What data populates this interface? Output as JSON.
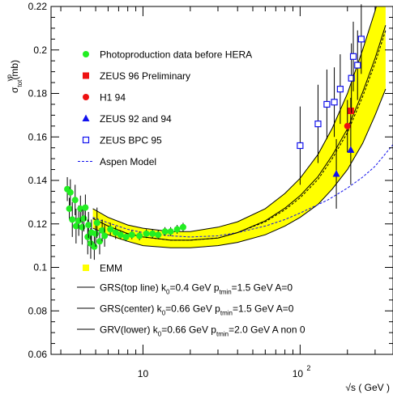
{
  "chart_data": {
    "type": "scatter",
    "ylabel_main": "σ",
    "ylabel_sup": "γp",
    "ylabel_sub": "tot",
    "ylabel_unit": "(mb)",
    "xlabel": "√s ( GeV )",
    "x_scale": "log",
    "xlim": [
      2.6,
      390
    ],
    "ylim": [
      0.06,
      0.22
    ],
    "yticks": [
      "0.06",
      "0.08",
      "0.1",
      "0.12",
      "0.14",
      "0.16",
      "0.18",
      "0.2",
      "0.22"
    ],
    "xtick_main": "10",
    "xtick_main_value": 10,
    "xtick_exp_base": "10",
    "xtick_exp": "2",
    "xtick_exp_value": 100,
    "legend": [
      {
        "label": "Photoproduction data before HERA",
        "marker": "circle",
        "color": "#22ee22"
      },
      {
        "label": "ZEUS 96 Preliminary",
        "marker": "square",
        "color": "#ee1111"
      },
      {
        "label": "H1 94",
        "marker": "circle",
        "color": "#ee1111"
      },
      {
        "label": "ZEUS 92 and 94",
        "marker": "triangle",
        "color": "#1111ee"
      },
      {
        "label": "ZEUS BPC 95",
        "marker": "open-square",
        "color": "#1111ee"
      },
      {
        "label": "Aspen Model",
        "marker": "dashed-line",
        "color": "#1111ee"
      }
    ],
    "legend2": {
      "emm": {
        "label": "EMM",
        "color": "#ffff00"
      },
      "lines": [
        {
          "pre": "GRS(top line) k",
          "s1": "0",
          "mid": "=0.4 GeV  p",
          "s2": "tmin",
          "post": "=1.5 GeV A=0"
        },
        {
          "pre": "GRS(center) k",
          "s1": "0",
          "mid": "=0.66 GeV  p",
          "s2": "tmin",
          "post": "=1.5 GeV A=0"
        },
        {
          "pre": "GRV(lower) k",
          "s1": "0",
          "mid": "=0.66 GeV p",
          "s2": "tmin",
          "post": "=2.0 GeV A non 0"
        }
      ]
    },
    "band": {
      "x": [
        4.8,
        5,
        6,
        7,
        8,
        10,
        12,
        15,
        20,
        30,
        40,
        60,
        80,
        100,
        130,
        160,
        200,
        250,
        300,
        350
      ],
      "upper": [
        0.127,
        0.126,
        0.123,
        0.121,
        0.1195,
        0.118,
        0.117,
        0.1165,
        0.1165,
        0.1185,
        0.121,
        0.127,
        0.134,
        0.141,
        0.152,
        0.164,
        0.18,
        0.2,
        0.218,
        0.236
      ],
      "lower": [
        0.118,
        0.1175,
        0.115,
        0.113,
        0.112,
        0.11,
        0.1095,
        0.109,
        0.109,
        0.11,
        0.1115,
        0.115,
        0.119,
        0.123,
        0.129,
        0.136,
        0.145,
        0.157,
        0.17,
        0.182
      ]
    },
    "lines": {
      "grs_top": {
        "x": [
          4.8,
          6,
          8,
          10,
          15,
          20,
          30,
          40,
          60,
          80,
          100,
          130,
          160,
          200,
          250,
          300,
          350
        ],
        "y": [
          0.127,
          0.123,
          0.1195,
          0.118,
          0.1165,
          0.1165,
          0.1185,
          0.121,
          0.127,
          0.134,
          0.141,
          0.152,
          0.164,
          0.18,
          0.2,
          0.218,
          0.236
        ]
      },
      "grs_center": {
        "x": [
          4.8,
          6,
          8,
          10,
          15,
          20,
          30,
          40,
          60,
          80,
          100,
          130,
          160,
          200,
          250,
          300,
          350
        ],
        "y": [
          0.1225,
          0.119,
          0.1155,
          0.114,
          0.1125,
          0.1125,
          0.1135,
          0.116,
          0.121,
          0.1265,
          0.132,
          0.1405,
          0.15,
          0.162,
          0.1785,
          0.194,
          0.209
        ]
      },
      "grv_lower": {
        "x": [
          4.8,
          6,
          8,
          10,
          15,
          20,
          30,
          40,
          60,
          80,
          100,
          130,
          160,
          200,
          250,
          300,
          350
        ],
        "y": [
          0.118,
          0.115,
          0.112,
          0.11,
          0.109,
          0.109,
          0.11,
          0.1115,
          0.115,
          0.119,
          0.123,
          0.129,
          0.136,
          0.145,
          0.157,
          0.17,
          0.182
        ]
      },
      "aspen": {
        "x": [
          4.8,
          6,
          8,
          10,
          15,
          20,
          30,
          40,
          60,
          80,
          100,
          150,
          200,
          250,
          300,
          390
        ],
        "y": [
          0.123,
          0.1205,
          0.1175,
          0.116,
          0.1145,
          0.114,
          0.1145,
          0.116,
          0.119,
          0.122,
          0.125,
          0.131,
          0.1365,
          0.1415,
          0.1465,
          0.1565
        ]
      }
    },
    "series": [
      {
        "name": "Photoproduction data before HERA",
        "marker": "circle",
        "color": "#22ee22",
        "points": [
          {
            "x": 3.3,
            "y": 0.136,
            "err": 0.0055
          },
          {
            "x": 3.45,
            "y": 0.1345,
            "err": 0.006
          },
          {
            "x": 3.4,
            "y": 0.127,
            "err": 0.005
          },
          {
            "x": 3.55,
            "y": 0.122,
            "err": 0.008
          },
          {
            "x": 3.7,
            "y": 0.131,
            "err": 0.007
          },
          {
            "x": 3.75,
            "y": 0.119,
            "err": 0.008
          },
          {
            "x": 3.9,
            "y": 0.1215,
            "err": 0.007
          },
          {
            "x": 4.0,
            "y": 0.127,
            "err": 0.006
          },
          {
            "x": 4.1,
            "y": 0.1185,
            "err": 0.008
          },
          {
            "x": 4.2,
            "y": 0.1225,
            "err": 0.006
          },
          {
            "x": 4.3,
            "y": 0.1275,
            "err": 0.006
          },
          {
            "x": 4.45,
            "y": 0.114,
            "err": 0.008
          },
          {
            "x": 4.5,
            "y": 0.1195,
            "err": 0.006
          },
          {
            "x": 4.65,
            "y": 0.111,
            "err": 0.007
          },
          {
            "x": 4.7,
            "y": 0.116,
            "err": 0.006
          },
          {
            "x": 4.9,
            "y": 0.1095,
            "err": 0.006
          },
          {
            "x": 5.0,
            "y": 0.1155,
            "err": 0.006
          },
          {
            "x": 5.1,
            "y": 0.1205,
            "err": 0.007
          },
          {
            "x": 5.3,
            "y": 0.112,
            "err": 0.006
          },
          {
            "x": 5.5,
            "y": 0.117,
            "err": 0.005
          },
          {
            "x": 5.7,
            "y": 0.1145,
            "err": 0.005
          },
          {
            "x": 6.2,
            "y": 0.1175,
            "err": 0.003
          },
          {
            "x": 6.7,
            "y": 0.116,
            "err": 0.003
          },
          {
            "x": 7.2,
            "y": 0.115,
            "err": 0.002
          },
          {
            "x": 7.8,
            "y": 0.114,
            "err": 0.002
          },
          {
            "x": 8.5,
            "y": 0.115,
            "err": 0.002
          },
          {
            "x": 9.5,
            "y": 0.1145,
            "err": 0.002
          },
          {
            "x": 10.5,
            "y": 0.1155,
            "err": 0.002
          },
          {
            "x": 11.5,
            "y": 0.1155,
            "err": 0.002
          },
          {
            "x": 12.5,
            "y": 0.115,
            "err": 0.002
          },
          {
            "x": 13.8,
            "y": 0.1165,
            "err": 0.002
          },
          {
            "x": 15.0,
            "y": 0.1165,
            "err": 0.002
          },
          {
            "x": 16.5,
            "y": 0.1175,
            "err": 0.002
          },
          {
            "x": 18.0,
            "y": 0.1185,
            "err": 0.002
          }
        ]
      },
      {
        "name": "ZEUS 96 Preliminary",
        "marker": "square",
        "color": "#ee1111",
        "points": [
          {
            "x": 210,
            "y": 0.172,
            "err": 0.006
          }
        ]
      },
      {
        "name": "H1 94",
        "marker": "circle",
        "color": "#ee1111",
        "points": [
          {
            "x": 200,
            "y": 0.165,
            "err": 0.012
          }
        ]
      },
      {
        "name": "ZEUS 92 and 94",
        "marker": "triangle",
        "color": "#1111ee",
        "points": [
          {
            "x": 170,
            "y": 0.143,
            "err": 0.016
          },
          {
            "x": 210,
            "y": 0.154,
            "err": 0.016
          }
        ]
      },
      {
        "name": "ZEUS BPC 95",
        "marker": "open-square",
        "color": "#1111ee",
        "points": [
          {
            "x": 100,
            "y": 0.156,
            "err": 0.018
          },
          {
            "x": 130,
            "y": 0.166,
            "err": 0.018
          },
          {
            "x": 148,
            "y": 0.175,
            "err": 0.016
          },
          {
            "x": 165,
            "y": 0.176,
            "err": 0.016
          },
          {
            "x": 180,
            "y": 0.182,
            "err": 0.016
          },
          {
            "x": 212,
            "y": 0.187,
            "err": 0.016
          },
          {
            "x": 218,
            "y": 0.197,
            "err": 0.016
          },
          {
            "x": 232,
            "y": 0.193,
            "err": 0.016
          },
          {
            "x": 245,
            "y": 0.205,
            "err": 0.016
          }
        ]
      }
    ]
  }
}
